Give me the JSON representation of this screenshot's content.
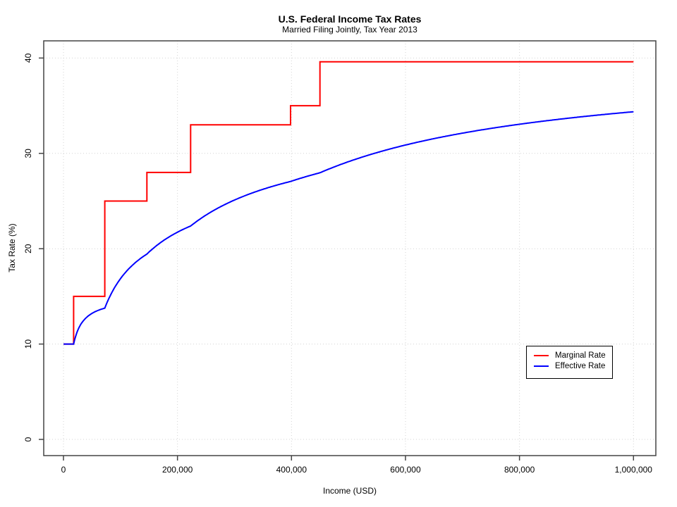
{
  "chart": {
    "title": "U.S. Federal Income Tax Rates",
    "subtitle": "Married Filing Jointly, Tax Year 2013",
    "xlabel": "Income (USD)",
    "ylabel": "Tax Rate (%)"
  },
  "legend": {
    "items": [
      {
        "label": "Marginal Rate",
        "color": "#FF0000"
      },
      {
        "label": "Effective Rate",
        "color": "#0000FF"
      }
    ]
  },
  "colors": {
    "marginal": "#FF0000",
    "effective": "#0000FF",
    "grid": "#D3D3D3",
    "axis": "#444444"
  },
  "chart_data": {
    "type": "line",
    "title": "U.S. Federal Income Tax Rates",
    "subtitle": "Married Filing Jointly, Tax Year 2013",
    "xlabel": "Income (USD)",
    "ylabel": "Tax Rate (%)",
    "xlim": [
      0,
      1000000
    ],
    "ylim": [
      0,
      40
    ],
    "grid": "dotted light-gray lines at every axis tick",
    "legend_position": "inside plot, right of center below middle",
    "x_ticks": {
      "values": [
        0,
        200000,
        400000,
        600000,
        800000,
        1000000
      ],
      "labels": [
        "0",
        "200,000",
        "400,000",
        "600,000",
        "800,000",
        "1,000,000"
      ]
    },
    "y_ticks": {
      "values": [
        0,
        10,
        20,
        30,
        40
      ],
      "labels": [
        "0",
        "10",
        "20",
        "30",
        "40"
      ]
    },
    "series": [
      {
        "name": "Marginal Rate",
        "color": "#FF0000",
        "style": "step",
        "income_to": 1000000,
        "brackets": [
          {
            "income_from": 0,
            "rate": 10
          },
          {
            "income_from": 17850,
            "rate": 15
          },
          {
            "income_from": 72500,
            "rate": 25
          },
          {
            "income_from": 146400,
            "rate": 28
          },
          {
            "income_from": 223050,
            "rate": 33
          },
          {
            "income_from": 398350,
            "rate": 35
          },
          {
            "income_from": 450000,
            "rate": 39.6
          }
        ]
      },
      {
        "name": "Effective Rate",
        "color": "#0000FF",
        "style": "smooth curve",
        "definition": "cumulative tax from marginal brackets divided by income",
        "key_points": [
          {
            "income": 17850,
            "rate": 10
          },
          {
            "income": 72500,
            "rate": 13.8
          },
          {
            "income": 146400,
            "rate": 19.4
          },
          {
            "income": 200000,
            "rate": 21.7
          },
          {
            "income": 223050,
            "rate": 22.4
          },
          {
            "income": 398350,
            "rate": 27.1
          },
          {
            "income": 450000,
            "rate": 28.0
          },
          {
            "income": 600000,
            "rate": 30.9
          },
          {
            "income": 800000,
            "rate": 33.1
          },
          {
            "income": 1000000,
            "rate": 34.4
          }
        ]
      }
    ]
  }
}
